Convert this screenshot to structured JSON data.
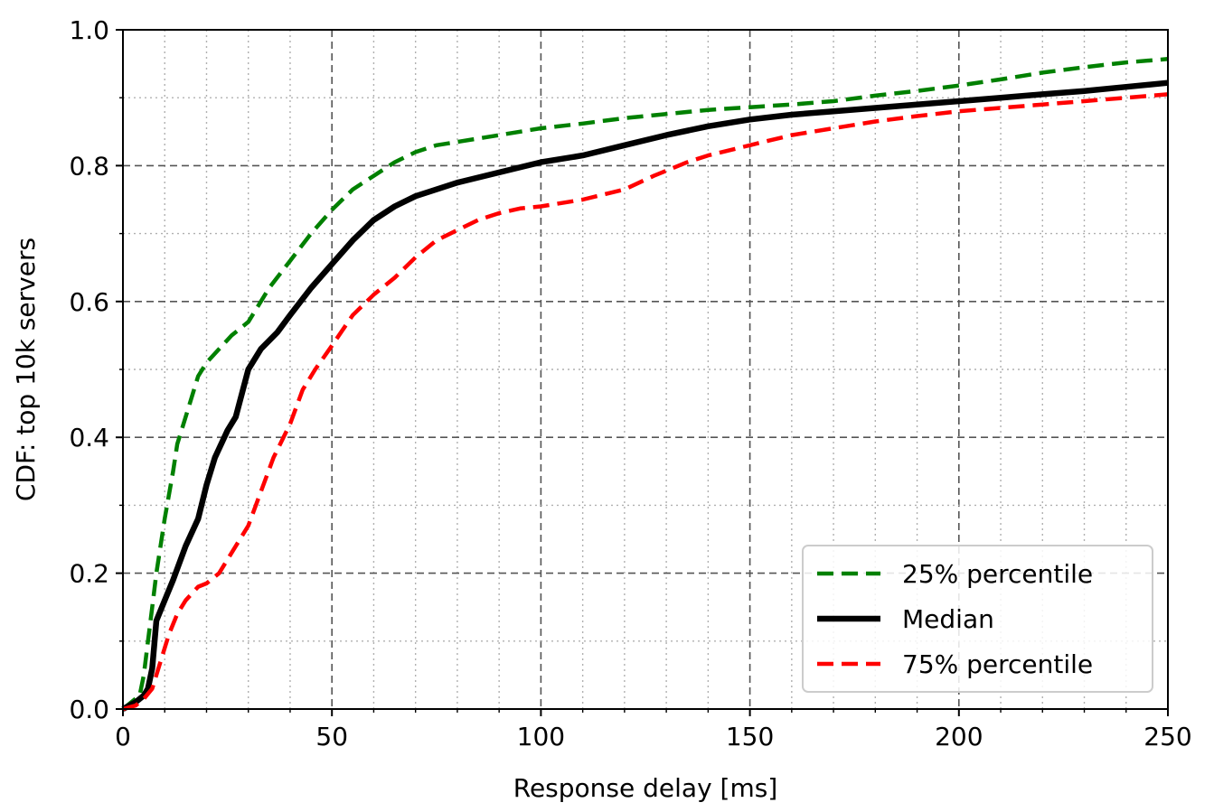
{
  "chart_data": {
    "type": "line",
    "xlabel": "Response delay [ms]",
    "ylabel": "CDF: top 10k servers",
    "xlim": [
      0,
      250
    ],
    "ylim": [
      0,
      1
    ],
    "x_ticks": [
      0,
      50,
      100,
      150,
      200,
      250
    ],
    "x_tick_labels": [
      "0",
      "50",
      "100",
      "150",
      "200",
      "250"
    ],
    "y_ticks": [
      0,
      0.2,
      0.4,
      0.6,
      0.8,
      1.0
    ],
    "y_tick_labels": [
      "0.0",
      "0.2",
      "0.4",
      "0.6",
      "0.8",
      "1.0"
    ],
    "grid": {
      "major": true,
      "minor": true
    },
    "legend_position": "bottom-right",
    "series": [
      {
        "name": "25% percentile",
        "color": "#008000",
        "style": "dashed",
        "points": [
          [
            0,
            0
          ],
          [
            2,
            0.01
          ],
          [
            4,
            0.02
          ],
          [
            5,
            0.05
          ],
          [
            6,
            0.1
          ],
          [
            7,
            0.15
          ],
          [
            8,
            0.2
          ],
          [
            10,
            0.28
          ],
          [
            12,
            0.35
          ],
          [
            13,
            0.39
          ],
          [
            15,
            0.43
          ],
          [
            18,
            0.49
          ],
          [
            20,
            0.51
          ],
          [
            23,
            0.53
          ],
          [
            26,
            0.55
          ],
          [
            30,
            0.57
          ],
          [
            35,
            0.62
          ],
          [
            40,
            0.66
          ],
          [
            45,
            0.7
          ],
          [
            50,
            0.735
          ],
          [
            55,
            0.765
          ],
          [
            60,
            0.785
          ],
          [
            65,
            0.805
          ],
          [
            70,
            0.82
          ],
          [
            75,
            0.83
          ],
          [
            80,
            0.835
          ],
          [
            90,
            0.845
          ],
          [
            100,
            0.855
          ],
          [
            110,
            0.862
          ],
          [
            120,
            0.87
          ],
          [
            130,
            0.876
          ],
          [
            140,
            0.882
          ],
          [
            150,
            0.886
          ],
          [
            160,
            0.89
          ],
          [
            170,
            0.895
          ],
          [
            180,
            0.903
          ],
          [
            190,
            0.91
          ],
          [
            200,
            0.918
          ],
          [
            210,
            0.927
          ],
          [
            220,
            0.937
          ],
          [
            230,
            0.945
          ],
          [
            240,
            0.952
          ],
          [
            250,
            0.957
          ]
        ]
      },
      {
        "name": "Median",
        "color": "#000000",
        "style": "solid",
        "points": [
          [
            0,
            0
          ],
          [
            3,
            0.01
          ],
          [
            5,
            0.02
          ],
          [
            6,
            0.03
          ],
          [
            7,
            0.06
          ],
          [
            8,
            0.13
          ],
          [
            10,
            0.16
          ],
          [
            12,
            0.19
          ],
          [
            15,
            0.24
          ],
          [
            18,
            0.28
          ],
          [
            20,
            0.33
          ],
          [
            22,
            0.37
          ],
          [
            25,
            0.41
          ],
          [
            27,
            0.43
          ],
          [
            30,
            0.5
          ],
          [
            33,
            0.53
          ],
          [
            37,
            0.555
          ],
          [
            40,
            0.58
          ],
          [
            45,
            0.62
          ],
          [
            50,
            0.655
          ],
          [
            55,
            0.69
          ],
          [
            60,
            0.72
          ],
          [
            65,
            0.74
          ],
          [
            70,
            0.755
          ],
          [
            75,
            0.765
          ],
          [
            80,
            0.775
          ],
          [
            90,
            0.79
          ],
          [
            100,
            0.805
          ],
          [
            110,
            0.815
          ],
          [
            120,
            0.83
          ],
          [
            130,
            0.845
          ],
          [
            140,
            0.858
          ],
          [
            150,
            0.868
          ],
          [
            160,
            0.875
          ],
          [
            170,
            0.88
          ],
          [
            180,
            0.885
          ],
          [
            190,
            0.89
          ],
          [
            200,
            0.895
          ],
          [
            210,
            0.9
          ],
          [
            220,
            0.905
          ],
          [
            230,
            0.91
          ],
          [
            240,
            0.916
          ],
          [
            250,
            0.922
          ]
        ]
      },
      {
        "name": "75% percentile",
        "color": "#ff0000",
        "style": "dashed",
        "points": [
          [
            0,
            0
          ],
          [
            3,
            0.005
          ],
          [
            5,
            0.015
          ],
          [
            7,
            0.03
          ],
          [
            9,
            0.07
          ],
          [
            11,
            0.11
          ],
          [
            13,
            0.14
          ],
          [
            15,
            0.16
          ],
          [
            18,
            0.18
          ],
          [
            20,
            0.185
          ],
          [
            23,
            0.2
          ],
          [
            25,
            0.22
          ],
          [
            28,
            0.25
          ],
          [
            30,
            0.27
          ],
          [
            33,
            0.32
          ],
          [
            36,
            0.37
          ],
          [
            40,
            0.42
          ],
          [
            43,
            0.47
          ],
          [
            46,
            0.5
          ],
          [
            50,
            0.535
          ],
          [
            55,
            0.58
          ],
          [
            60,
            0.61
          ],
          [
            65,
            0.635
          ],
          [
            70,
            0.665
          ],
          [
            75,
            0.69
          ],
          [
            80,
            0.705
          ],
          [
            85,
            0.72
          ],
          [
            90,
            0.73
          ],
          [
            95,
            0.737
          ],
          [
            100,
            0.74
          ],
          [
            110,
            0.75
          ],
          [
            120,
            0.765
          ],
          [
            127,
            0.785
          ],
          [
            135,
            0.805
          ],
          [
            140,
            0.815
          ],
          [
            150,
            0.83
          ],
          [
            160,
            0.845
          ],
          [
            170,
            0.855
          ],
          [
            180,
            0.865
          ],
          [
            190,
            0.873
          ],
          [
            200,
            0.88
          ],
          [
            210,
            0.885
          ],
          [
            220,
            0.89
          ],
          [
            230,
            0.895
          ],
          [
            240,
            0.9
          ],
          [
            250,
            0.905
          ]
        ]
      }
    ]
  }
}
